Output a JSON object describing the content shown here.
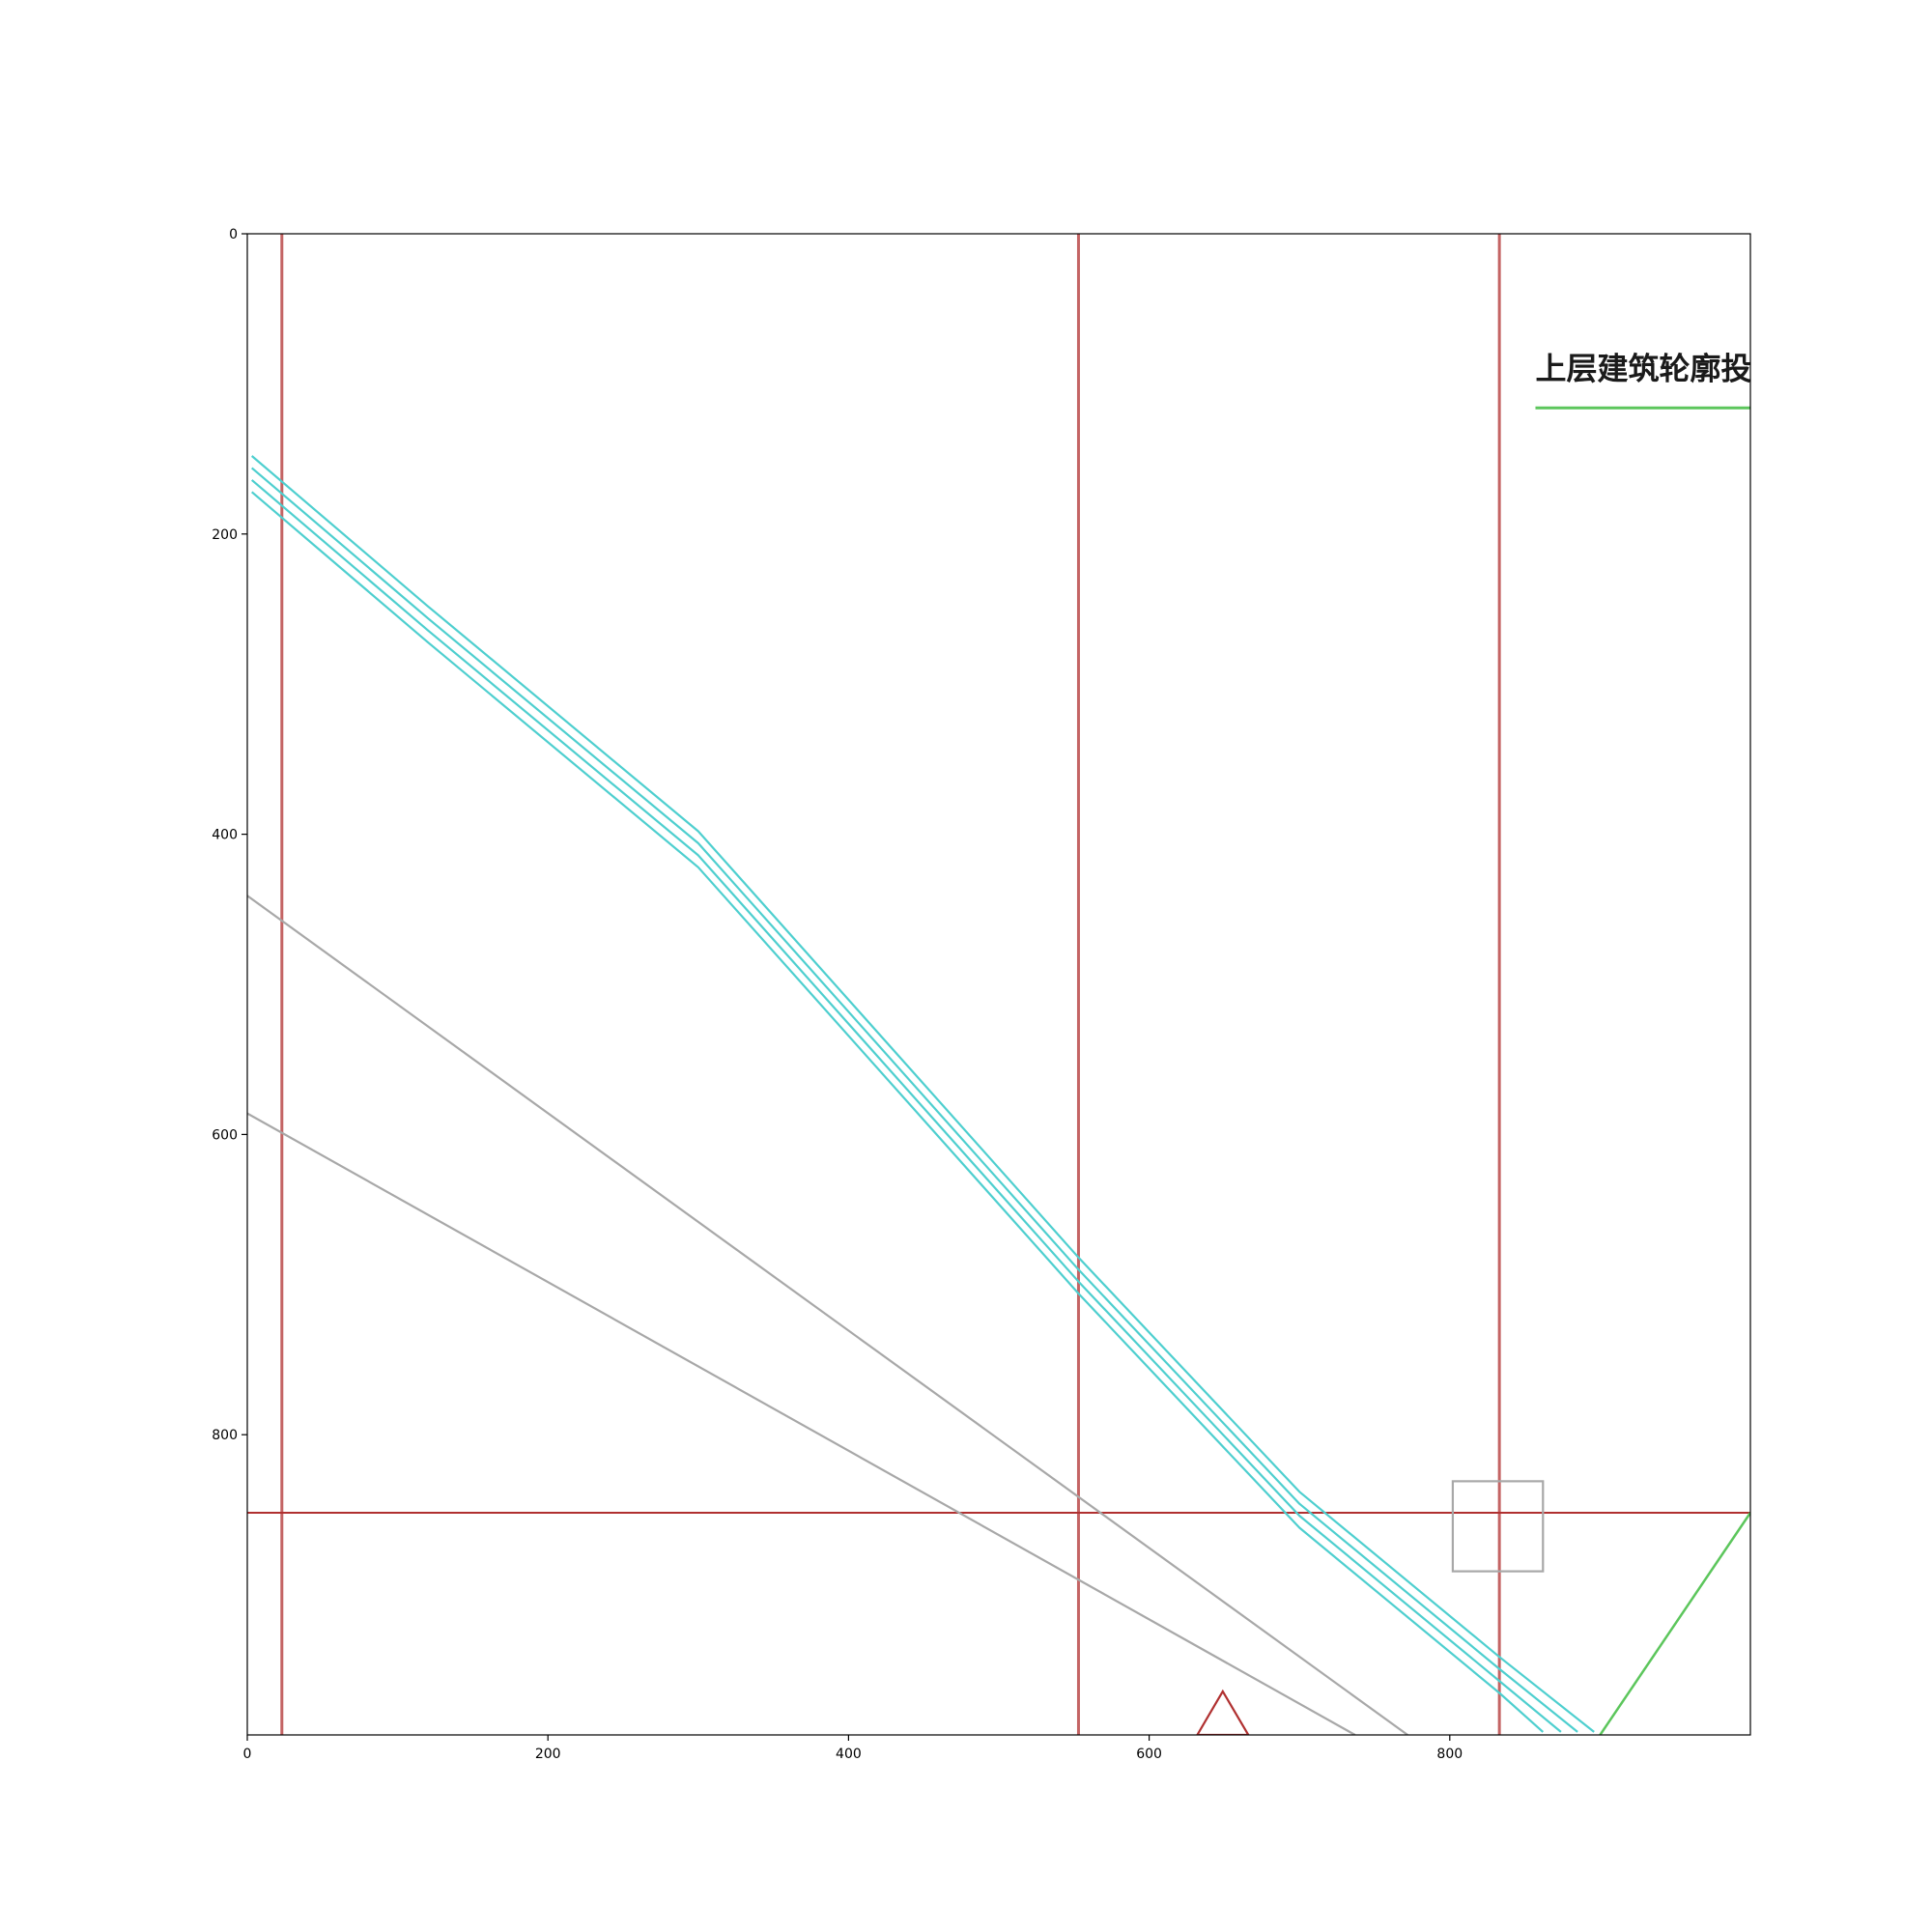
{
  "chart_data": {
    "type": "plot",
    "xlim": [
      0,
      1000
    ],
    "ylim": [
      1000,
      0
    ],
    "x_ticks": [
      "0",
      "200",
      "400",
      "600",
      "800"
    ],
    "y_ticks": [
      "0",
      "200",
      "400",
      "600",
      "800"
    ],
    "colors": {
      "cyan": "#4ecfcf",
      "gray": "#a8a8a8",
      "red_line": "#c46464",
      "dark_red": "#b03030",
      "green": "#5cc65c",
      "frame": "#000000",
      "text": "#1a1a1a"
    },
    "vertical_lines": [
      23,
      553,
      833
    ],
    "horizontal_line": 852,
    "cyan_curves": [
      [
        [
          3,
          148
        ],
        [
          120,
          248
        ],
        [
          300,
          398
        ],
        [
          553,
          682
        ],
        [
          700,
          838
        ],
        [
          833,
          948
        ],
        [
          896,
          998
        ]
      ],
      [
        [
          3,
          156
        ],
        [
          120,
          256
        ],
        [
          300,
          406
        ],
        [
          553,
          690
        ],
        [
          700,
          846
        ],
        [
          833,
          956
        ],
        [
          885,
          998
        ]
      ],
      [
        [
          3,
          164
        ],
        [
          120,
          264
        ],
        [
          300,
          414
        ],
        [
          553,
          698
        ],
        [
          700,
          854
        ],
        [
          833,
          964
        ],
        [
          874,
          998
        ]
      ],
      [
        [
          3,
          172
        ],
        [
          120,
          272
        ],
        [
          300,
          422
        ],
        [
          553,
          706
        ],
        [
          700,
          862
        ],
        [
          833,
          972
        ],
        [
          862,
          998
        ]
      ]
    ],
    "gray_lines": [
      [
        [
          0,
          441
        ],
        [
          772,
          1000
        ]
      ],
      [
        [
          0,
          586
        ],
        [
          737,
          1000
        ]
      ]
    ],
    "gray_square": [
      [
        802,
        831
      ],
      [
        862,
        891
      ]
    ],
    "red_triangle": [
      [
        632,
        1000
      ],
      [
        649,
        971
      ],
      [
        666,
        1000
      ]
    ],
    "green_line": [
      [
        900,
        1000
      ],
      [
        1000,
        852
      ]
    ],
    "legend": {
      "label": "上层建筑轮廓投影",
      "line": [
        [
          857,
          116
        ],
        [
          1000,
          116
        ]
      ]
    }
  }
}
